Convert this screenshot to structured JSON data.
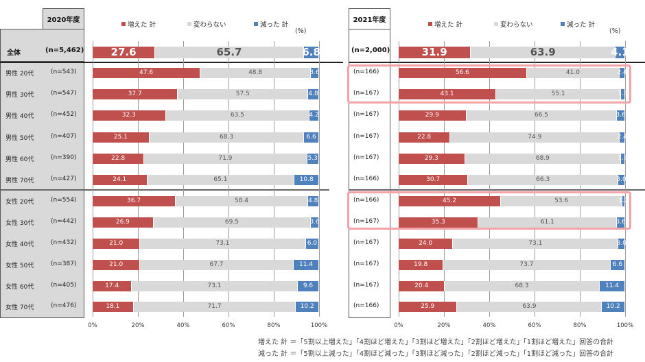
{
  "legend": [
    {
      "label": "増えた 計",
      "color": "#c0504d"
    },
    {
      "label": "変わらない",
      "color": "#d9d9d9"
    },
    {
      "label": "減った 計",
      "color": "#4f81bd"
    }
  ],
  "unit": "(%)",
  "footnotes": [
    "増えた 計 ＝「5割以上増えた」「4割ほど増えた」「3割ほど増えた」「2割ほど増えた」「1割ほど増えた」回答の合計",
    "減った 計 ＝「5割以上減った」「4割ほど減った」「3割ほど減った」「2割ほど減った」「1割ほど減った」回答の合計"
  ],
  "chart_data": [
    {
      "type": "bar",
      "stacked": true,
      "orientation": "horizontal",
      "title": "2020年度",
      "xlim": [
        0,
        100
      ],
      "xticks": [
        "0%",
        "20%",
        "40%",
        "60%",
        "80%",
        "100%"
      ],
      "grid": true,
      "overall": {
        "label": "全体",
        "n": "(n=5,462)",
        "values": [
          27.6,
          65.7,
          6.8
        ]
      },
      "rows": [
        {
          "label": "男性 20代",
          "n": "(n=543)",
          "values": [
            47.6,
            48.8,
            3.6
          ]
        },
        {
          "label": "男性 30代",
          "n": "(n=547)",
          "values": [
            37.7,
            57.5,
            4.8
          ]
        },
        {
          "label": "男性 40代",
          "n": "(n=452)",
          "values": [
            32.3,
            63.5,
            4.2
          ]
        },
        {
          "label": "男性 50代",
          "n": "(n=407)",
          "values": [
            25.1,
            68.3,
            6.6
          ]
        },
        {
          "label": "男性 60代",
          "n": "(n=390)",
          "values": [
            22.8,
            71.9,
            5.3
          ]
        },
        {
          "label": "男性 70代",
          "n": "(n=427)",
          "values": [
            24.1,
            65.1,
            10.8
          ]
        },
        {
          "label": "女性 20代",
          "n": "(n=554)",
          "values": [
            36.7,
            58.4,
            4.8
          ]
        },
        {
          "label": "女性 30代",
          "n": "(n=442)",
          "values": [
            26.9,
            69.5,
            3.6
          ]
        },
        {
          "label": "女性 40代",
          "n": "(n=432)",
          "values": [
            21.0,
            73.1,
            6.0
          ]
        },
        {
          "label": "女性 50代",
          "n": "(n=387)",
          "values": [
            21.0,
            67.7,
            11.4
          ]
        },
        {
          "label": "女性 60代",
          "n": "(n=405)",
          "values": [
            17.4,
            73.1,
            9.6
          ]
        },
        {
          "label": "女性 70代",
          "n": "(n=476)",
          "values": [
            18.1,
            71.7,
            10.2
          ]
        }
      ]
    },
    {
      "type": "bar",
      "stacked": true,
      "orientation": "horizontal",
      "title": "2021年度",
      "xlim": [
        0,
        100
      ],
      "xticks": [
        "0%",
        "20%",
        "40%",
        "60%",
        "80%",
        "100%"
      ],
      "grid": true,
      "overall": {
        "n": "(n=2,000)",
        "values": [
          31.9,
          63.9,
          4.1
        ]
      },
      "rows": [
        {
          "n": "(n=166)",
          "values": [
            56.6,
            41.0,
            2.4
          ]
        },
        {
          "n": "(n=167)",
          "values": [
            43.1,
            55.1,
            1.8
          ]
        },
        {
          "n": "(n=167)",
          "values": [
            29.9,
            66.5,
            3.6
          ]
        },
        {
          "n": "(n=167)",
          "values": [
            22.8,
            74.9,
            2.4
          ]
        },
        {
          "n": "(n=167)",
          "values": [
            29.3,
            68.9,
            1.8
          ]
        },
        {
          "n": "(n=166)",
          "values": [
            30.7,
            66.3,
            3.0
          ]
        },
        {
          "n": "(n=166)",
          "values": [
            45.2,
            53.6,
            1.2
          ]
        },
        {
          "n": "(n=167)",
          "values": [
            35.3,
            61.1,
            3.6
          ]
        },
        {
          "n": "(n=167)",
          "values": [
            24.0,
            73.1,
            3.0
          ]
        },
        {
          "n": "(n=167)",
          "values": [
            19.8,
            73.7,
            6.6
          ]
        },
        {
          "n": "(n=167)",
          "values": [
            20.4,
            68.3,
            11.4
          ]
        },
        {
          "n": "(n=166)",
          "values": [
            25.9,
            63.9,
            10.2
          ]
        }
      ],
      "highlighted_rows": [
        0,
        1,
        6,
        7
      ]
    }
  ]
}
